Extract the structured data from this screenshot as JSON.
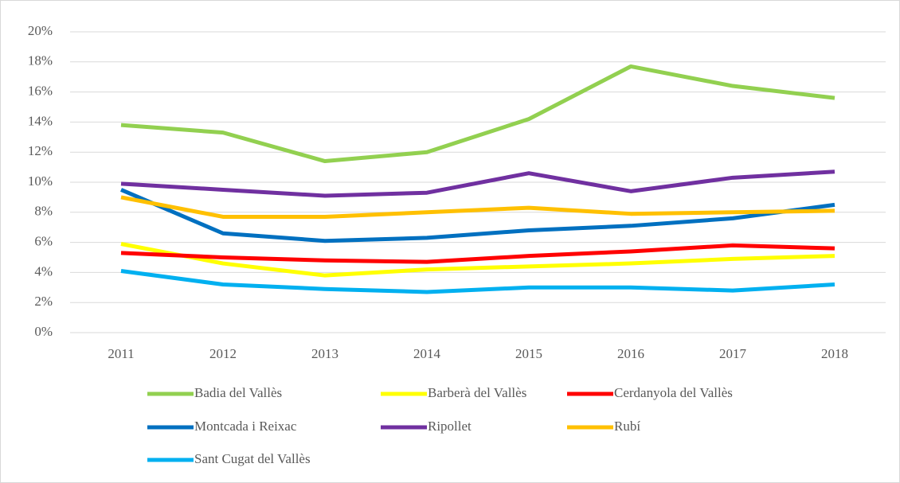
{
  "chart_data": {
    "type": "line",
    "categories": [
      "2011",
      "2012",
      "2013",
      "2014",
      "2015",
      "2016",
      "2017",
      "2018"
    ],
    "series": [
      {
        "name": "Badia del Vallès",
        "color": "#92d050",
        "values": [
          13.8,
          13.3,
          11.4,
          12.0,
          14.2,
          17.7,
          16.4,
          15.6
        ]
      },
      {
        "name": "Barberà del Vallès",
        "color": "#ffff00",
        "values": [
          5.9,
          4.6,
          3.8,
          4.2,
          4.4,
          4.6,
          4.9,
          5.1
        ]
      },
      {
        "name": "Cerdanyola del Vallès",
        "color": "#ff0000",
        "values": [
          5.3,
          5.0,
          4.8,
          4.7,
          5.1,
          5.4,
          5.8,
          5.6
        ]
      },
      {
        "name": "Montcada i Reixac",
        "color": "#0070c0",
        "values": [
          9.5,
          6.6,
          6.1,
          6.3,
          6.8,
          7.1,
          7.6,
          8.5
        ]
      },
      {
        "name": "Ripollet",
        "color": "#7030a0",
        "values": [
          9.9,
          9.5,
          9.1,
          9.3,
          10.6,
          9.4,
          10.3,
          10.7
        ]
      },
      {
        "name": "Rubí",
        "color": "#ffc000",
        "values": [
          9.0,
          7.7,
          7.7,
          8.0,
          8.3,
          7.9,
          8.0,
          8.1
        ]
      },
      {
        "name": "Sant Cugat del Vallès",
        "color": "#00b0f0",
        "values": [
          4.1,
          3.2,
          2.9,
          2.7,
          3.0,
          3.0,
          2.8,
          3.2
        ]
      }
    ],
    "ylim": [
      0,
      20
    ],
    "yticks": [
      {
        "value": 0,
        "label": "0%"
      },
      {
        "value": 2,
        "label": "2%"
      },
      {
        "value": 4,
        "label": "4%"
      },
      {
        "value": 6,
        "label": "6%"
      },
      {
        "value": 8,
        "label": "8%"
      },
      {
        "value": 10,
        "label": "10%"
      },
      {
        "value": 12,
        "label": "12%"
      },
      {
        "value": 14,
        "label": "14%"
      },
      {
        "value": 16,
        "label": "16%"
      },
      {
        "value": 18,
        "label": "18%"
      },
      {
        "value": 20,
        "label": "20%"
      }
    ],
    "grid": true,
    "legend": "bottom"
  }
}
